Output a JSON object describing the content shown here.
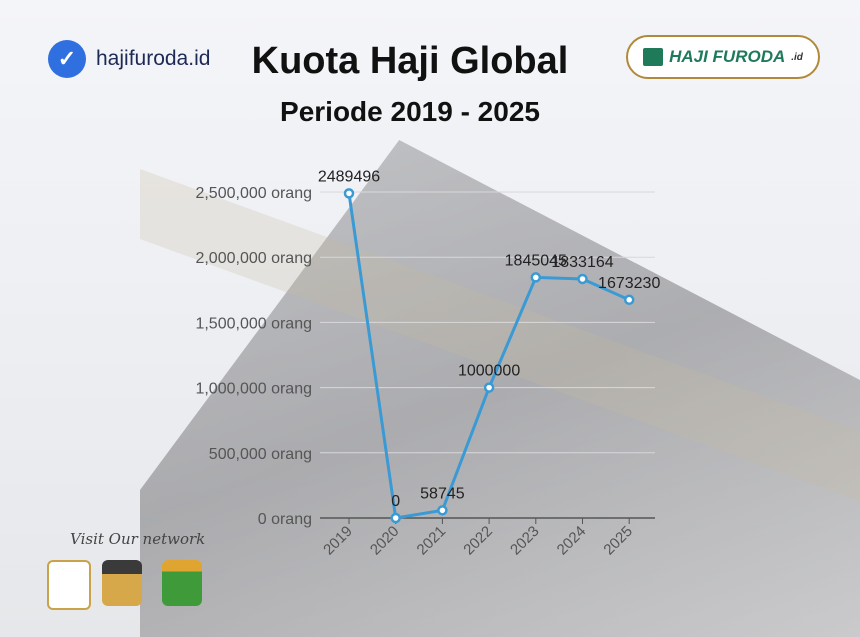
{
  "header": {
    "brand": "hajifuroda.id",
    "title": "Kuota Haji Global",
    "subtitle": "Periode 2019 - 2025",
    "logo_text": "HAJI FURODA",
    "logo_suffix": ".id"
  },
  "footer": {
    "network_label": "Visit Our network"
  },
  "colors": {
    "line": "#3b9ad4",
    "brand_blue": "#2f6fe0",
    "logo_green": "#1f7a5a"
  },
  "chart_data": {
    "type": "line",
    "categories": [
      "2019",
      "2020",
      "2021",
      "2022",
      "2023",
      "2024",
      "2025"
    ],
    "values": [
      2489496,
      0,
      58745,
      1000000,
      1845045,
      1833164,
      1673230
    ],
    "data_labels": [
      "2489496",
      "0",
      "58745",
      "1000000",
      "1845045",
      "1833164",
      "1673230"
    ],
    "ylim": [
      0,
      2500000
    ],
    "y_ticks": [
      "0 orang",
      "500,000 orang",
      "1,000,000 orang",
      "1,500,000 orang",
      "2,000,000 orang",
      "2,500,000 orang"
    ],
    "y_tick_values": [
      0,
      500000,
      1000000,
      1500000,
      2000000,
      2500000
    ],
    "grid": true
  }
}
